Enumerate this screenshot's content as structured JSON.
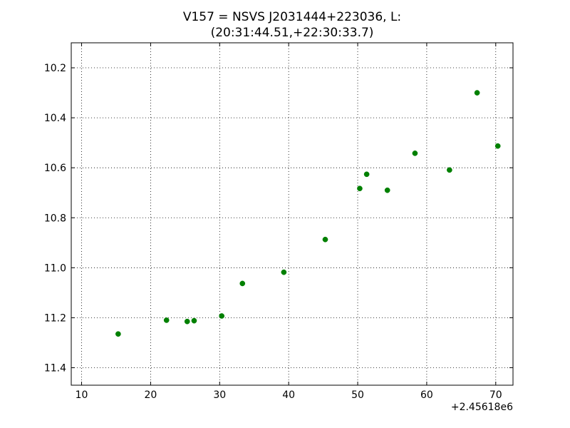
{
  "chart_data": {
    "type": "scatter",
    "title_lines": [
      "V157 = NSVS J2031444+223036, L:",
      "(20:31:44.51,+22:30:33.7)"
    ],
    "xlabel": "",
    "ylabel": "",
    "x_offset_label": "+2.45618e6",
    "xlim": [
      8.5,
      72.5
    ],
    "ylim": [
      11.47,
      10.1
    ],
    "y_inverted": true,
    "x_ticks": [
      10,
      20,
      30,
      40,
      50,
      60,
      70
    ],
    "x_tick_labels": [
      "10",
      "20",
      "30",
      "40",
      "50",
      "60",
      "70"
    ],
    "y_ticks": [
      10.2,
      10.4,
      10.6,
      10.8,
      11.0,
      11.2,
      11.4
    ],
    "y_tick_labels": [
      "10.2",
      "10.4",
      "10.6",
      "10.8",
      "11.0",
      "11.2",
      "11.4"
    ],
    "grid": true,
    "marker_color": "#008000",
    "points": [
      {
        "x": 15.3,
        "y": 11.265
      },
      {
        "x": 22.3,
        "y": 11.21
      },
      {
        "x": 25.3,
        "y": 11.215
      },
      {
        "x": 26.3,
        "y": 11.212
      },
      {
        "x": 30.3,
        "y": 11.193
      },
      {
        "x": 33.3,
        "y": 11.063
      },
      {
        "x": 39.3,
        "y": 11.018
      },
      {
        "x": 45.3,
        "y": 10.887
      },
      {
        "x": 50.3,
        "y": 10.683
      },
      {
        "x": 51.3,
        "y": 10.626
      },
      {
        "x": 54.3,
        "y": 10.69
      },
      {
        "x": 58.3,
        "y": 10.542
      },
      {
        "x": 63.3,
        "y": 10.609
      },
      {
        "x": 67.3,
        "y": 10.3
      },
      {
        "x": 70.3,
        "y": 10.513
      }
    ]
  }
}
